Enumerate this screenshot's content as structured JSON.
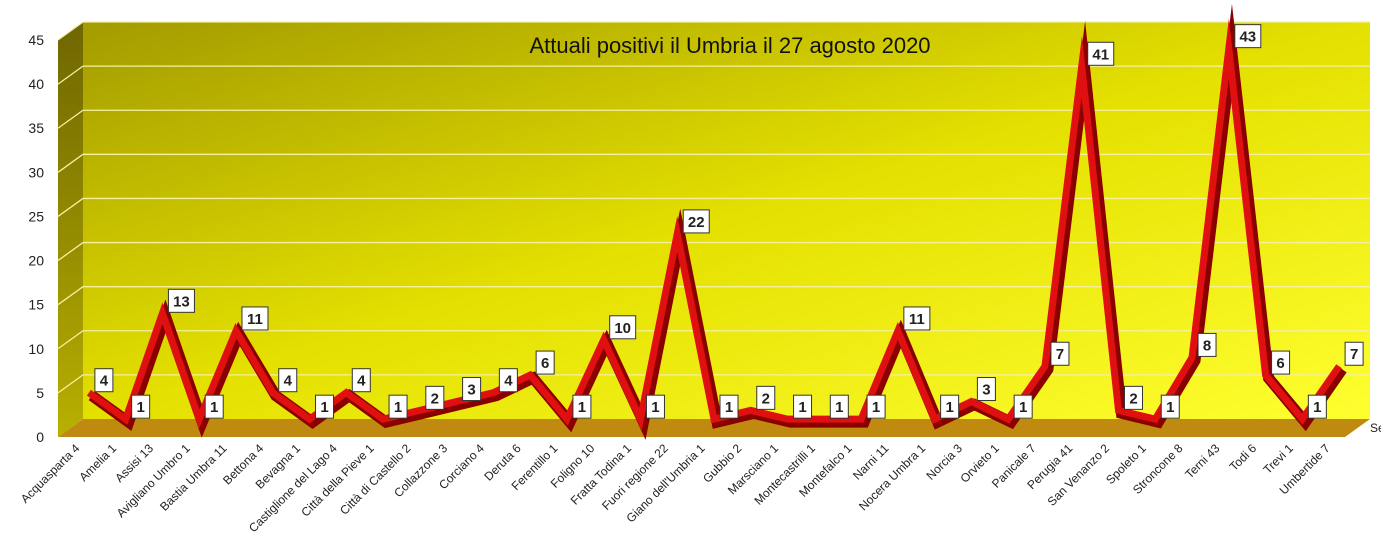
{
  "chart_data": {
    "type": "line",
    "title": "Attuali positivi il Umbria il 27 agosto 2020",
    "categories": [
      "Acquasparta 4",
      "Amelia 1",
      "Assisi 13",
      "Avigliano Umbro 1",
      "Bastia Umbra 11",
      "Bettona 4",
      "Bevagna 1",
      "Castiglione del Lago 4",
      "Città della Pieve 1",
      "Città di Castello 2",
      "Collazzone 3",
      "Corciano 4",
      "Deruta 6",
      "Ferentillo 1",
      "Foligno 10",
      "Fratta Todina 1",
      "Fuori regione 22",
      "Giano dell'Umbria 1",
      "Gubbio 2",
      "Marsciano 1",
      "Montecastrilli 1",
      "Montefalco 1",
      "Narni 11",
      "Nocera Umbra 1",
      "Norcia 3",
      "Orvieto 1",
      "Panicale 7",
      "Perugia 41",
      "San Venanzo 2",
      "Spoleto 1",
      "Stroncone 8",
      "Terni 43",
      "Todi 6",
      "Trevi 1",
      "Umbertide 7"
    ],
    "values": [
      4,
      1,
      13,
      1,
      11,
      4,
      1,
      4,
      1,
      2,
      3,
      4,
      6,
      1,
      10,
      1,
      22,
      1,
      2,
      1,
      1,
      1,
      11,
      1,
      3,
      1,
      7,
      41,
      2,
      1,
      8,
      43,
      6,
      1,
      7
    ],
    "ylim": [
      0,
      45
    ],
    "yticks": [
      0,
      5,
      10,
      15,
      20,
      25,
      30,
      35,
      40,
      45
    ],
    "grid": true,
    "legend_fragment": "Se",
    "style": "3d",
    "colors": {
      "line": "#e01010",
      "line_shadow": "#8a0000",
      "wall_top": "#a8a000",
      "wall_bottom": "#ffff20",
      "floor": "#c08a10"
    }
  }
}
